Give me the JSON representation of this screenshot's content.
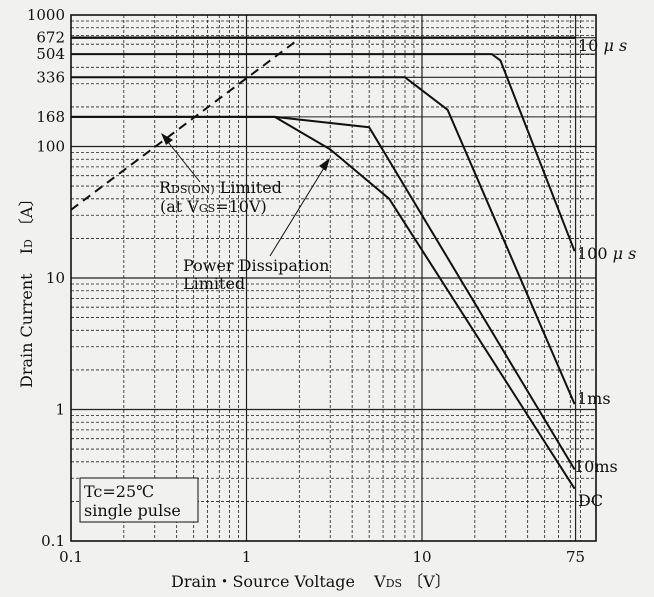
{
  "chart_data": {
    "type": "line",
    "title": "",
    "x_scale": "log",
    "y_scale": "log",
    "xlim": [
      0.1,
      80
    ],
    "ylim": [
      0.1,
      1000
    ],
    "grid": true,
    "x_ticks": [
      {
        "value": 0.1,
        "label": "0.1"
      },
      {
        "value": 1,
        "label": "1"
      },
      {
        "value": 10,
        "label": "10"
      },
      {
        "value": 75,
        "label": "75"
      }
    ],
    "y_ticks": [
      {
        "value": 1000,
        "label": "1000"
      },
      {
        "value": 672,
        "label": "672"
      },
      {
        "value": 504,
        "label": "504"
      },
      {
        "value": 336,
        "label": "336"
      },
      {
        "value": 168,
        "label": "168"
      },
      {
        "value": 100,
        "label": "100"
      },
      {
        "value": 10,
        "label": "10"
      },
      {
        "value": 1,
        "label": "1"
      },
      {
        "value": 0.1,
        "label": "0.1"
      }
    ],
    "xlabel": {
      "main": "Drain・Source Voltage",
      "sym": "V",
      "sub": "DS",
      "unit": "〔V〕"
    },
    "ylabel": {
      "main": "Drain Current",
      "sym": "I",
      "sub": "D",
      "unit": "〔A〕"
    },
    "series": [
      {
        "name": "10μs",
        "points": [
          [
            0.1,
            672
          ],
          [
            75,
            672
          ]
        ]
      },
      {
        "name": "100μs",
        "points": [
          [
            0.1,
            504
          ],
          [
            25,
            504
          ],
          [
            28,
            450
          ],
          [
            74,
            16
          ]
        ]
      },
      {
        "name": "1ms",
        "points": [
          [
            0.1,
            336
          ],
          [
            8,
            336
          ],
          [
            14,
            190
          ],
          [
            74,
            1.1
          ]
        ]
      },
      {
        "name": "10ms",
        "points": [
          [
            0.1,
            168
          ],
          [
            1.45,
            168
          ],
          [
            5,
            140
          ],
          [
            74,
            0.35
          ]
        ]
      },
      {
        "name": "DC",
        "points": [
          [
            0.1,
            168
          ],
          [
            1.45,
            168
          ],
          [
            3,
            95
          ],
          [
            6.5,
            40
          ],
          [
            74,
            0.25
          ]
        ]
      },
      {
        "name": "RDS(ON) Limited",
        "style": "dashed",
        "points": [
          [
            0.1,
            33
          ],
          [
            2,
            660
          ]
        ]
      }
    ],
    "annotations": {
      "rds_line1_main": "R",
      "rds_line1_sub": "DS(ON)",
      "rds_line1_rest": " Limited",
      "rds_line2_pre": "(at V",
      "rds_line2_sub": "GS",
      "rds_line2_rest": "=10V)",
      "pd_line1": "Power Dissipation",
      "pd_line2": "Limited",
      "cond_line1": "Tc=25℃",
      "cond_line2": "single pulse"
    },
    "curve_labels": {
      "10us_main": "10",
      "10us_unit": "μ s",
      "100us_main": "100",
      "100us_unit": "μ s",
      "1ms": "1ms",
      "10ms": "10ms",
      "dc": "DC"
    }
  }
}
